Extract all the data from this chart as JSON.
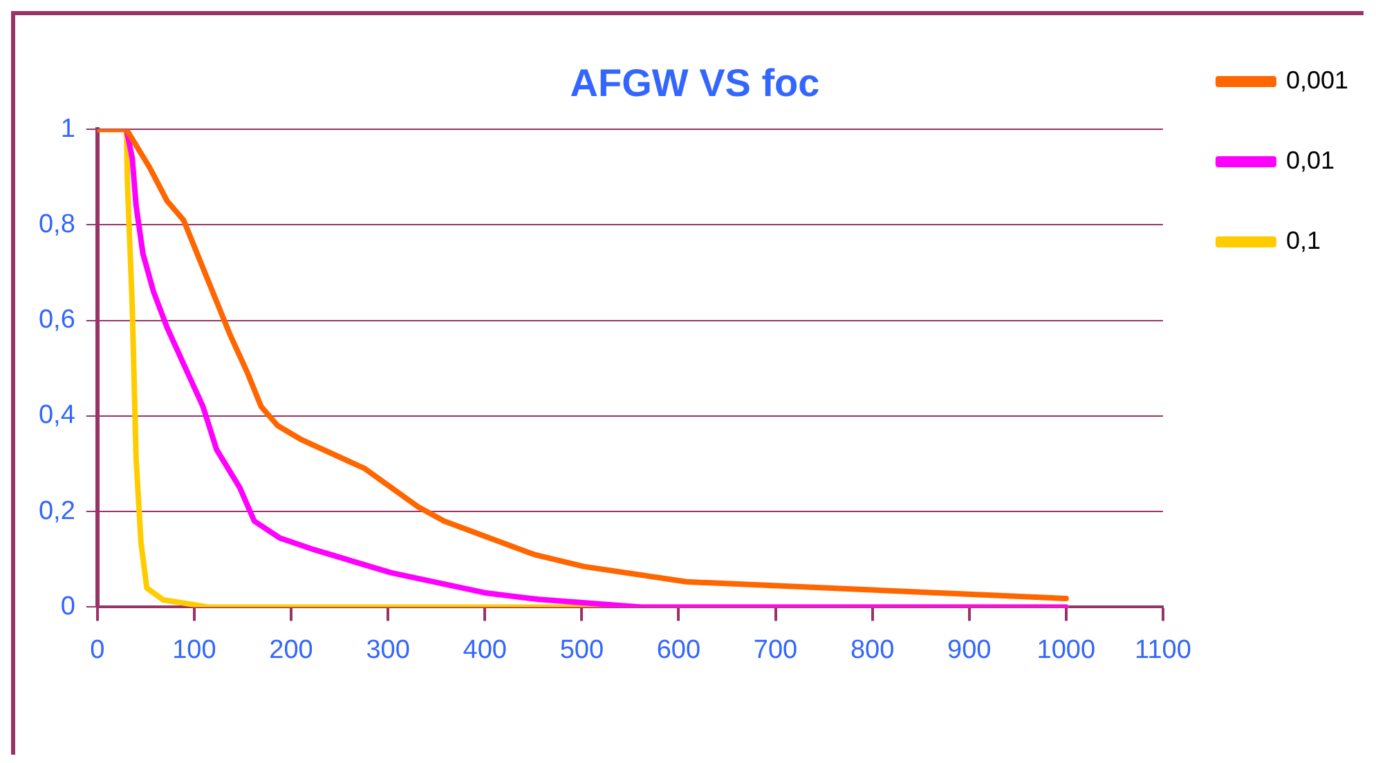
{
  "chart_data": {
    "type": "line",
    "title": "AFGW VS foc",
    "xlim": [
      0,
      1100
    ],
    "xticks": [
      0,
      100,
      200,
      300,
      400,
      500,
      600,
      700,
      800,
      900,
      1000,
      1100
    ],
    "ylim": [
      0,
      1
    ],
    "yticks": [
      0,
      {
        "value": 0.2,
        "label": "0,2"
      },
      {
        "value": 0.4,
        "label": "0,4"
      },
      {
        "value": 0.6,
        "label": "0,6"
      },
      {
        "value": 0.8,
        "label": "0,8"
      },
      1
    ],
    "grid": "y",
    "legend": "right",
    "marker": "none",
    "line_style": "solid",
    "series": [
      {
        "name": "0,001",
        "color": "#ff6600",
        "x": [
          0,
          30,
          54,
          72,
          89,
          109,
          123,
          137,
          155,
          169,
          186,
          211,
          276,
          331,
          358,
          451,
          502,
          608,
          1000
        ],
        "values": [
          1,
          1,
          0.92,
          0.85,
          0.81,
          0.71,
          0.64,
          0.57,
          0.49,
          0.42,
          0.38,
          0.35,
          0.29,
          0.21,
          0.18,
          0.11,
          0.085,
          0.053,
          0.018
        ]
      },
      {
        "name": "0,01",
        "color": "#ff00ff",
        "x": [
          30,
          36,
          40,
          47,
          58,
          72,
          91,
          109,
          123,
          147,
          162,
          188,
          224,
          303,
          400,
          456,
          562,
          1000
        ],
        "values": [
          1,
          0.94,
          0.84,
          0.74,
          0.66,
          0.585,
          0.5,
          0.42,
          0.33,
          0.25,
          0.18,
          0.145,
          0.12,
          0.072,
          0.03,
          0.016,
          0,
          0
        ]
      },
      {
        "name": "0,1",
        "color": "#ffcc00",
        "x": [
          0,
          30,
          31,
          36,
          40,
          45,
          51,
          68,
          100,
          114,
          1000
        ],
        "values": [
          1,
          1,
          0.89,
          0.63,
          0.31,
          0.135,
          0.04,
          0.015,
          0.005,
          0,
          0
        ]
      }
    ]
  }
}
